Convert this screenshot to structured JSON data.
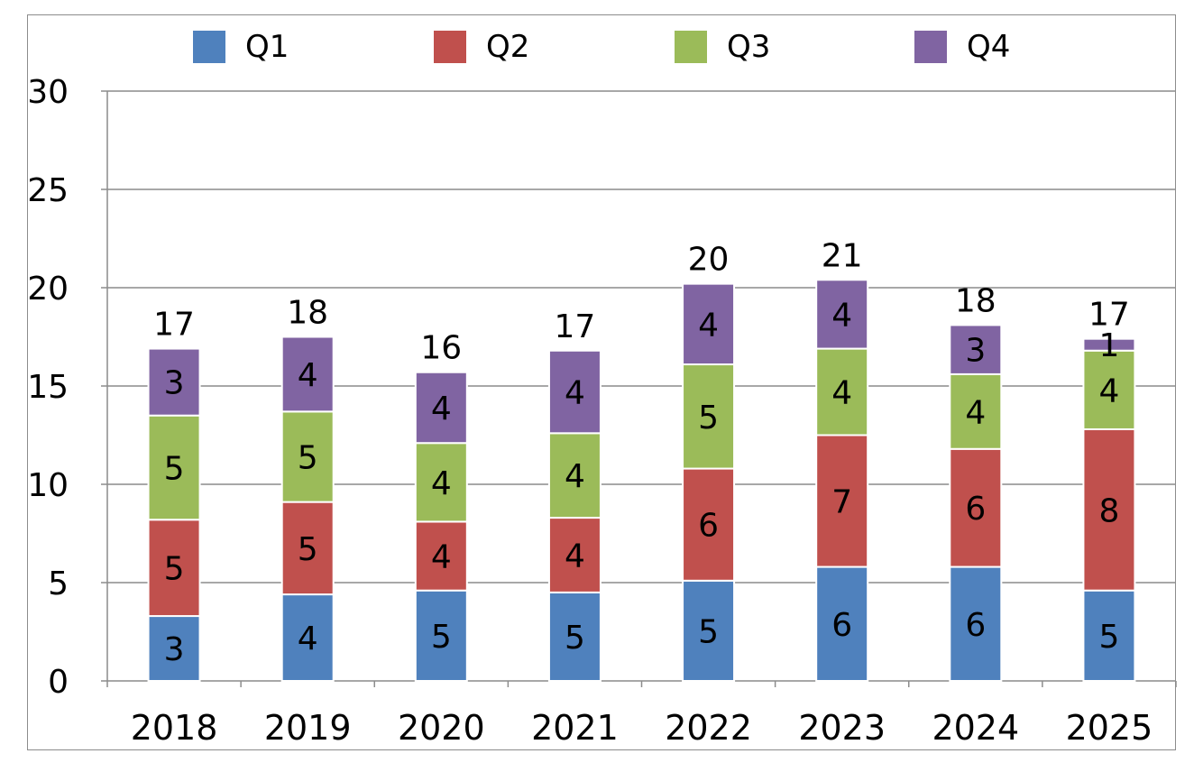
{
  "chart_data": {
    "type": "bar",
    "stacked": true,
    "categories": [
      "2018",
      "2019",
      "2020",
      "2021",
      "2022",
      "2023",
      "2024",
      "2025"
    ],
    "series": [
      {
        "name": "Q1",
        "color": "#4f81bd",
        "values": [
          3.3,
          4.4,
          4.6,
          4.5,
          5.1,
          5.8,
          5.8,
          4.6
        ],
        "labels": [
          "3",
          "4",
          "5",
          "5",
          "5",
          "6",
          "6",
          "5"
        ]
      },
      {
        "name": "Q2",
        "color": "#c0504d",
        "values": [
          4.9,
          4.7,
          3.5,
          3.8,
          5.7,
          6.7,
          6.0,
          8.2
        ],
        "labels": [
          "5",
          "5",
          "4",
          "4",
          "6",
          "7",
          "6",
          "8"
        ]
      },
      {
        "name": "Q3",
        "color": "#9bbb59",
        "values": [
          5.3,
          4.6,
          4.0,
          4.3,
          5.3,
          4.4,
          3.8,
          4.0
        ],
        "labels": [
          "5",
          "5",
          "4",
          "4",
          "5",
          "4",
          "4",
          "4"
        ]
      },
      {
        "name": "Q4",
        "color": "#8064a2",
        "values": [
          3.4,
          3.8,
          3.6,
          4.2,
          4.1,
          3.5,
          2.5,
          0.6
        ],
        "labels": [
          "3",
          "4",
          "4",
          "4",
          "4",
          "4",
          "3",
          "1"
        ]
      }
    ],
    "totals": [
      "17",
      "18",
      "16",
      "17",
      "20",
      "21",
      "18",
      "17"
    ],
    "ylim": [
      0,
      30
    ],
    "yticks": [
      "0",
      "5",
      "10",
      "15",
      "20",
      "25",
      "30"
    ],
    "grid": true,
    "legend_position": "top",
    "title": "",
    "xlabel": "",
    "ylabel": ""
  }
}
